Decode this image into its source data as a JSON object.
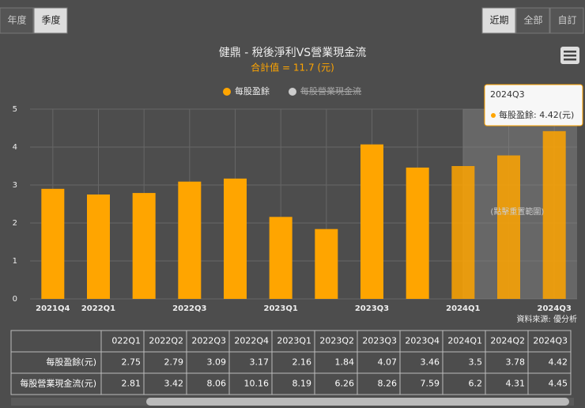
{
  "buttons_left": [
    "年度",
    "季度"
  ],
  "buttons_right": [
    "近期",
    "全部",
    "自訂"
  ],
  "chart_data": {
    "type": "bar",
    "title": "健鼎 - 稅後淨利VS營業現金流",
    "subtitle": "合計值 = 11.7 (元)",
    "categories": [
      "2021Q4",
      "2022Q1",
      null,
      "2022Q3",
      null,
      "2023Q1",
      null,
      "2023Q3",
      null,
      "2024Q1",
      null,
      "2024Q3"
    ],
    "series": [
      {
        "name": "每股盈餘",
        "color": "#ffa500",
        "values": [
          2.9,
          2.75,
          2.79,
          3.09,
          3.17,
          2.16,
          1.84,
          4.07,
          3.46,
          3.5,
          3.78,
          4.42
        ]
      }
    ],
    "legend_hidden": [
      {
        "name": "每股營業現金流",
        "color": "#cccccc"
      }
    ],
    "ylim": [
      0,
      5
    ],
    "yticks": [
      0,
      1,
      2,
      3,
      4,
      5
    ],
    "grid": true,
    "annotation": "(點擊重置範圍)",
    "tooltip": {
      "title": "2024Q3",
      "label": "每股盈餘: 4.42(元)"
    },
    "source": "資料來源: 優分析"
  },
  "table": {
    "header": [
      "022Q1",
      "2022Q2",
      "2022Q3",
      "2022Q4",
      "2023Q1",
      "2023Q2",
      "2023Q3",
      "2023Q4",
      "2024Q1",
      "2024Q2",
      "2024Q3"
    ],
    "rows": [
      [
        "每股盈餘(元)",
        2.75,
        2.79,
        3.09,
        3.17,
        2.16,
        1.84,
        4.07,
        3.46,
        3.5,
        3.78,
        4.42
      ],
      [
        "每股營業現金流(元)",
        2.81,
        3.42,
        8.06,
        10.16,
        8.19,
        6.26,
        8.26,
        7.59,
        6.2,
        4.31,
        4.45
      ]
    ]
  }
}
